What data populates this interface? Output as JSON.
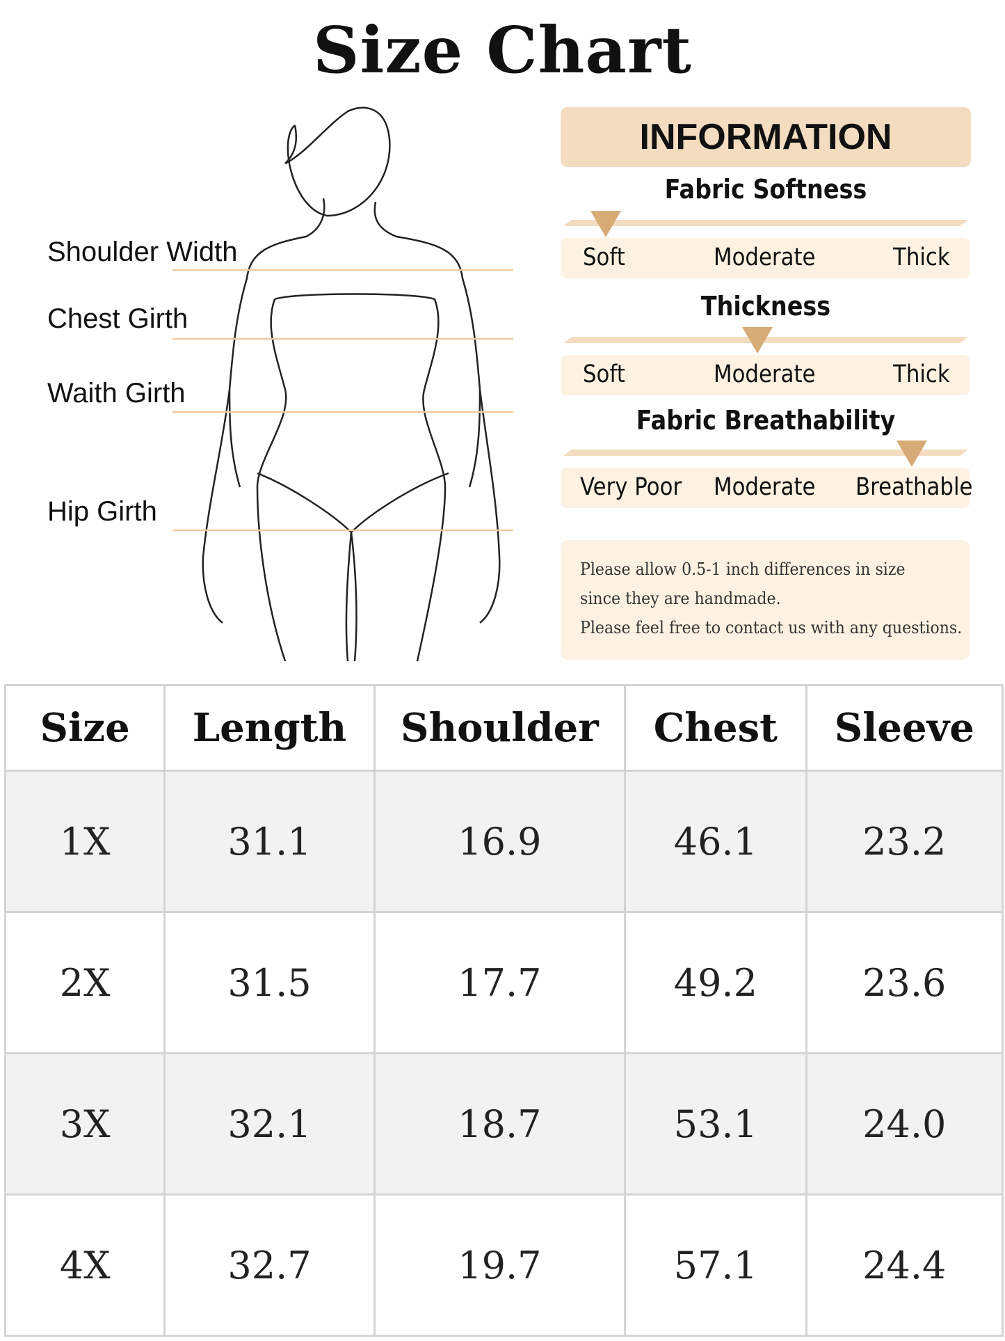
{
  "title": "Size Chart",
  "measure_labels": [
    "Shoulder Width",
    "Chest Girth",
    "Waith Girth",
    "Hip Girth"
  ],
  "information": {
    "header": "INFORMATION",
    "scales": [
      {
        "title": "Fabric Softness",
        "labels": [
          "Soft",
          "Moderate",
          "Thick"
        ],
        "level": "Soft"
      },
      {
        "title": "Thickness",
        "labels": [
          "Soft",
          "Moderate",
          "Thick"
        ],
        "level": "Moderate"
      },
      {
        "title": "Fabric Breathability",
        "labels": [
          "Very Poor",
          "Moderate",
          "Breathable"
        ],
        "level": "Breathable"
      }
    ],
    "note": [
      "Please allow 0.5-1 inch differences in size",
      "since they are handmade.",
      "Please feel free to contact us with any questions."
    ]
  },
  "colors": {
    "accent": "#d7ab76",
    "header_bg": "#f3dcc0",
    "panel_bg": "#fdf2e2",
    "stripe": "#f2f2f2"
  },
  "table": {
    "headers": [
      "Size",
      "Length",
      "Shoulder",
      "Chest",
      "Sleeve"
    ],
    "rows": [
      [
        "1X",
        "31.1",
        "16.9",
        "46.1",
        "23.2"
      ],
      [
        "2X",
        "31.5",
        "17.7",
        "49.2",
        "23.6"
      ],
      [
        "3X",
        "32.1",
        "18.7",
        "53.1",
        "24.0"
      ],
      [
        "4X",
        "32.7",
        "19.7",
        "57.1",
        "24.4"
      ]
    ]
  }
}
